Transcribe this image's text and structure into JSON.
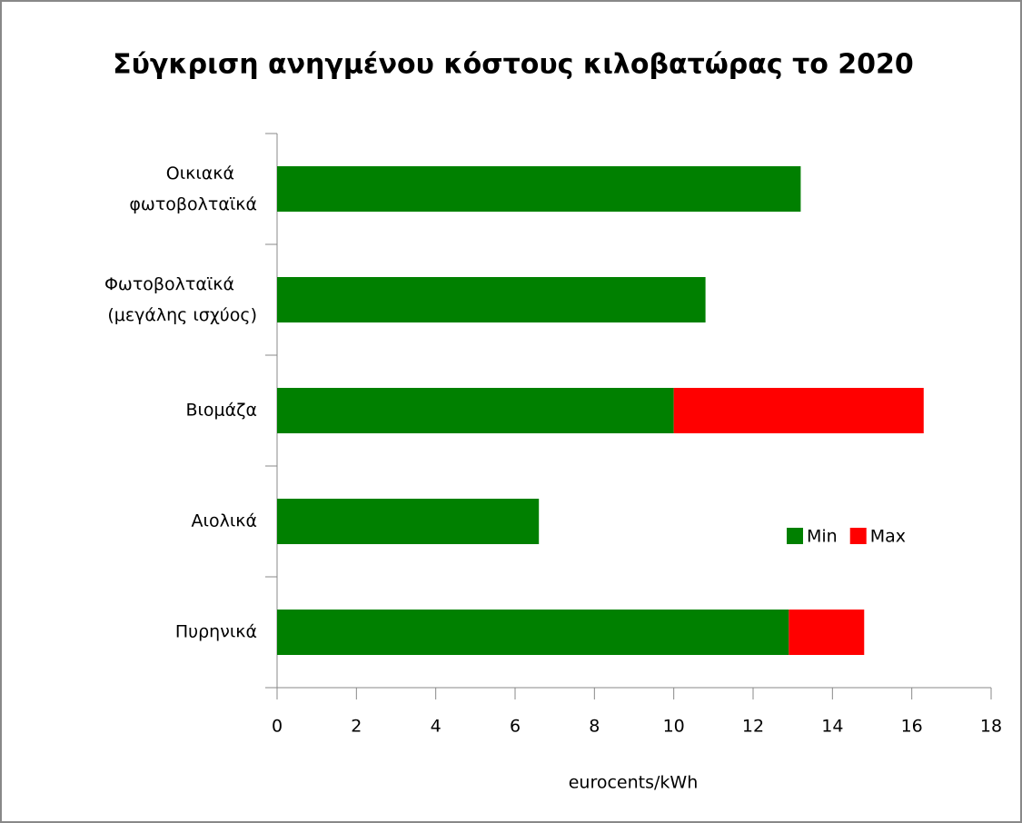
{
  "chart_data": {
    "type": "stacked_barh",
    "title": "Σύγκριση ανηγμένου κόστους κιλοβατώρας το 2020",
    "xlabel": "eurocents/kWh",
    "categories": [
      "Οικιακά φωτοβολταϊκά",
      "Φωτοβολταϊκά (μεγάλης ισχύος)",
      "Βιομάζα",
      "Αιολικά",
      "Πυρηνικά"
    ],
    "series": [
      {
        "name": "Min",
        "color": "#008000",
        "values": [
          13.2,
          10.8,
          10,
          6.6,
          12.9
        ]
      },
      {
        "name": "Max",
        "color": "#ff0000",
        "values": [
          null,
          null,
          6.3,
          null,
          1.9
        ]
      }
    ],
    "xlim": [
      0,
      18
    ],
    "xticks": [
      0,
      2,
      4,
      6,
      8,
      10,
      12,
      14,
      16,
      18
    ],
    "legend": "right"
  }
}
